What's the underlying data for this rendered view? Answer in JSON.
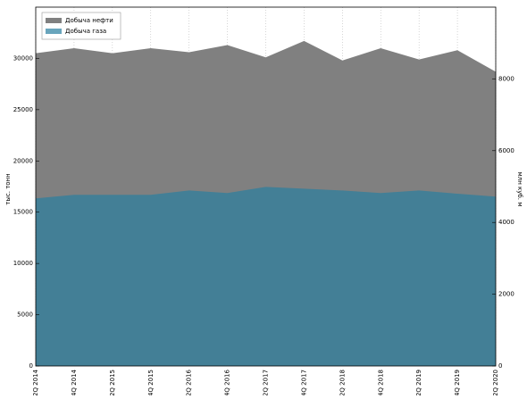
{
  "chart_data": {
    "type": "area",
    "y_label": "тыс. тонн",
    "y2_label": "млн куб. м",
    "categories": [
      "2Q 2014",
      "4Q 2014",
      "2Q 2015",
      "4Q 2015",
      "2Q 2016",
      "4Q 2016",
      "2Q 2017",
      "4Q 2017",
      "2Q 2018",
      "4Q 2018",
      "2Q 2019",
      "4Q 2019",
      "2Q 2020"
    ],
    "series": [
      {
        "name": "Добыча нефти",
        "color": "#808080",
        "values": [
          30500,
          31000,
          30500,
          31000,
          30600,
          31300,
          30100,
          31700,
          29800,
          31000,
          29900,
          30800,
          28700
        ]
      },
      {
        "name": "Добыча газа",
        "color": "#2a7fa0",
        "axis": "y2",
        "values": [
          4670,
          4770,
          4770,
          4770,
          4890,
          4820,
          4990,
          4940,
          4890,
          4820,
          4890,
          4800,
          4720
        ]
      }
    ],
    "ylim": [
      0,
      35000
    ],
    "yticks": [
      0,
      5000,
      10000,
      15000,
      20000,
      25000,
      30000
    ],
    "y2lim": [
      0,
      10000
    ],
    "y2ticks": [
      0,
      2000,
      4000,
      6000,
      8000
    ],
    "grid": true,
    "legend": "upper-left"
  }
}
